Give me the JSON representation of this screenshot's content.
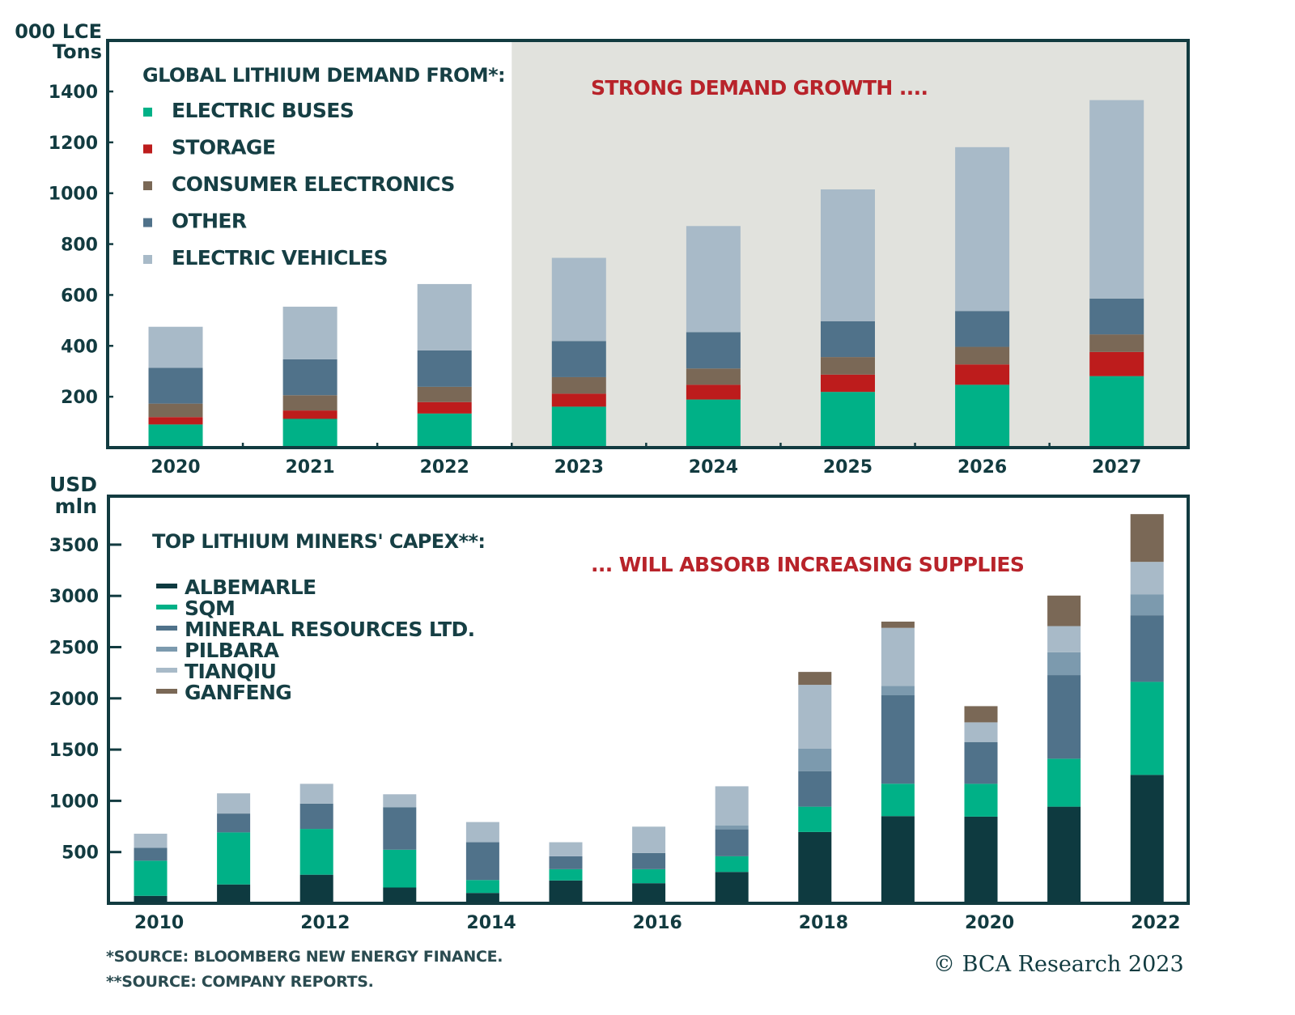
{
  "colors": {
    "frame": "#123b40",
    "shade": "#e1e2dd",
    "annotation": "#b8232a",
    "electric_buses": "#00b187",
    "storage": "#bd1c1c",
    "consumer_electronics": "#7a6856",
    "other_top": "#50728a",
    "electric_vehicles": "#a8bac8",
    "albemarle": "#0e3a40",
    "sqm": "#00b187",
    "mineral_resources": "#50728a",
    "pilbara": "#7c9aae",
    "tianqiu": "#a8bac8",
    "ganfeng": "#7a6856"
  },
  "chart_data": [
    {
      "type": "bar",
      "stacked": true,
      "title": "GLOBAL LITHIUM DEMAND FROM*:",
      "ylabel": "000 LCE Tons",
      "xlabel": "",
      "annotation": "STRONG DEMAND GROWTH ....",
      "shaded_from_category": "2023",
      "ylim": [
        0,
        1500
      ],
      "yticks": [
        200,
        400,
        600,
        800,
        1000,
        1200,
        1400
      ],
      "grid": false,
      "legend_position": "top-left",
      "categories": [
        "2020",
        "2021",
        "2022",
        "2023",
        "2024",
        "2025",
        "2026",
        "2027"
      ],
      "series": [
        {
          "name": "ELECTRIC BUSES",
          "color_key": "electric_buses",
          "values": [
            91,
            113,
            134,
            161,
            189,
            219,
            247,
            281
          ]
        },
        {
          "name": "STORAGE",
          "color_key": "storage",
          "values": [
            29,
            33,
            45,
            51,
            58,
            68,
            80,
            95
          ]
        },
        {
          "name": "CONSUMER ELECTRONICS",
          "color_key": "consumer_electronics",
          "values": [
            53,
            60,
            60,
            65,
            64,
            69,
            69,
            69
          ]
        },
        {
          "name": "OTHER",
          "color_key": "other_top",
          "values": [
            141,
            141,
            143,
            142,
            143,
            141,
            141,
            141
          ]
        },
        {
          "name": "ELECTRIC VEHICLES",
          "color_key": "electric_vehicles",
          "values": [
            161,
            207,
            261,
            327,
            417,
            518,
            644,
            780
          ]
        }
      ],
      "legend_order": [
        "ELECTRIC BUSES",
        "STORAGE",
        "CONSUMER ELECTRONICS",
        "OTHER",
        "ELECTRIC VEHICLES"
      ]
    },
    {
      "type": "bar",
      "stacked": true,
      "title": "TOP LITHIUM MINERS' CAPEX**:",
      "ylabel": "USD mln",
      "xlabel": "",
      "annotation": "... WILL ABSORB INCREASING SUPPLIES",
      "ylim": [
        0,
        3970
      ],
      "yticks": [
        500,
        1000,
        1500,
        2000,
        2500,
        3000,
        3500
      ],
      "grid": false,
      "legend_position": "top-left",
      "categories": [
        "2010",
        "2011",
        "2012",
        "2013",
        "2014",
        "2015",
        "2016",
        "2017",
        "2018",
        "2019",
        "2020",
        "2021",
        "2022"
      ],
      "xtick_labels": [
        "2010",
        "2012",
        "2014",
        "2016",
        "2018",
        "2020",
        "2022"
      ],
      "series": [
        {
          "name": "ALBEMARLE",
          "color_key": "albemarle",
          "values": [
            73,
            184,
            279,
            154,
            101,
            223,
            196,
            306,
            696,
            851,
            846,
            943,
            1253
          ]
        },
        {
          "name": "SQM",
          "color_key": "sqm",
          "values": [
            343,
            508,
            447,
            369,
            126,
            110,
            137,
            153,
            247,
            316,
            320,
            468,
            908
          ]
        },
        {
          "name": "MINERAL RESOURCES LTD.",
          "color_key": "mineral_resources",
          "values": [
            126,
            184,
            247,
            415,
            369,
            126,
            158,
            263,
            347,
            863,
            408,
            816,
            650
          ]
        },
        {
          "name": "PILBARA",
          "color_key": "pilbara",
          "values": [
            0,
            0,
            0,
            0,
            0,
            0,
            0,
            39,
            221,
            92,
            0,
            223,
            205
          ]
        },
        {
          "name": "TIANQIU",
          "color_key": "tianqiu",
          "values": [
            137,
            197,
            193,
            126,
            197,
            137,
            257,
            381,
            621,
            566,
            192,
            255,
            316
          ]
        },
        {
          "name": "GANFENG",
          "color_key": "ganfeng",
          "values": [
            0,
            0,
            0,
            0,
            0,
            0,
            0,
            0,
            126,
            61,
            158,
            298,
            466
          ]
        }
      ],
      "legend_order": [
        "ALBEMARLE",
        "SQM",
        "MINERAL RESOURCES LTD.",
        "PILBARA",
        "TIANQIU",
        "GANFENG"
      ]
    }
  ],
  "top": {
    "ylabel_line1": "000 LCE",
    "ylabel_line2": "Tons"
  },
  "bottom": {
    "ylabel_line1": "USD",
    "ylabel_line2": "mln"
  },
  "footnotes": [
    "*SOURCE: BLOOMBERG NEW ENERGY FINANCE.",
    "**SOURCE: COMPANY REPORTS."
  ],
  "copyright": "© BCA Research 2023"
}
